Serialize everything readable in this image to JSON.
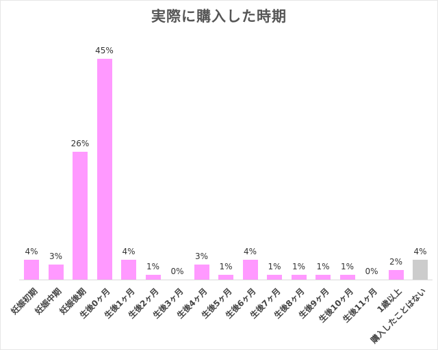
{
  "chart_data": {
    "type": "bar",
    "title": "実際に購入した時期",
    "xlabel": "",
    "ylabel": "",
    "ylim": [
      0,
      45
    ],
    "grid": false,
    "legend": null,
    "categories": [
      "妊娠初期",
      "妊娠中期",
      "妊娠後期",
      "生後0ヶ月",
      "生後1ヶ月",
      "生後2ヶ月",
      "生後3ヶ月",
      "生後4ヶ月",
      "生後5ヶ月",
      "生後6ヶ月",
      "生後7ヶ月",
      "生後8ヶ月",
      "生後9ヶ月",
      "生後10ヶ月",
      "生後11ヶ月",
      "1歳以上",
      "購入したことはない"
    ],
    "values": [
      4,
      3,
      26,
      45,
      4,
      1,
      0,
      3,
      1,
      4,
      1,
      1,
      1,
      1,
      0,
      2,
      4
    ],
    "value_labels": [
      "4%",
      "3%",
      "26%",
      "45%",
      "4%",
      "1%",
      "0%",
      "3%",
      "1%",
      "4%",
      "1%",
      "1%",
      "1%",
      "1%",
      "0%",
      "2%",
      "4%"
    ],
    "bar_colors": [
      "#ff99ff",
      "#ff99ff",
      "#ff99ff",
      "#ff99ff",
      "#ff99ff",
      "#ff99ff",
      "#ff99ff",
      "#ff99ff",
      "#ff99ff",
      "#ff99ff",
      "#ff99ff",
      "#ff99ff",
      "#ff99ff",
      "#ff99ff",
      "#ff99ff",
      "#ff99ff",
      "#cccccc"
    ]
  },
  "colors": {
    "primary_bar": "#ff99ff",
    "none_bar": "#cccccc",
    "title": "#555555"
  }
}
